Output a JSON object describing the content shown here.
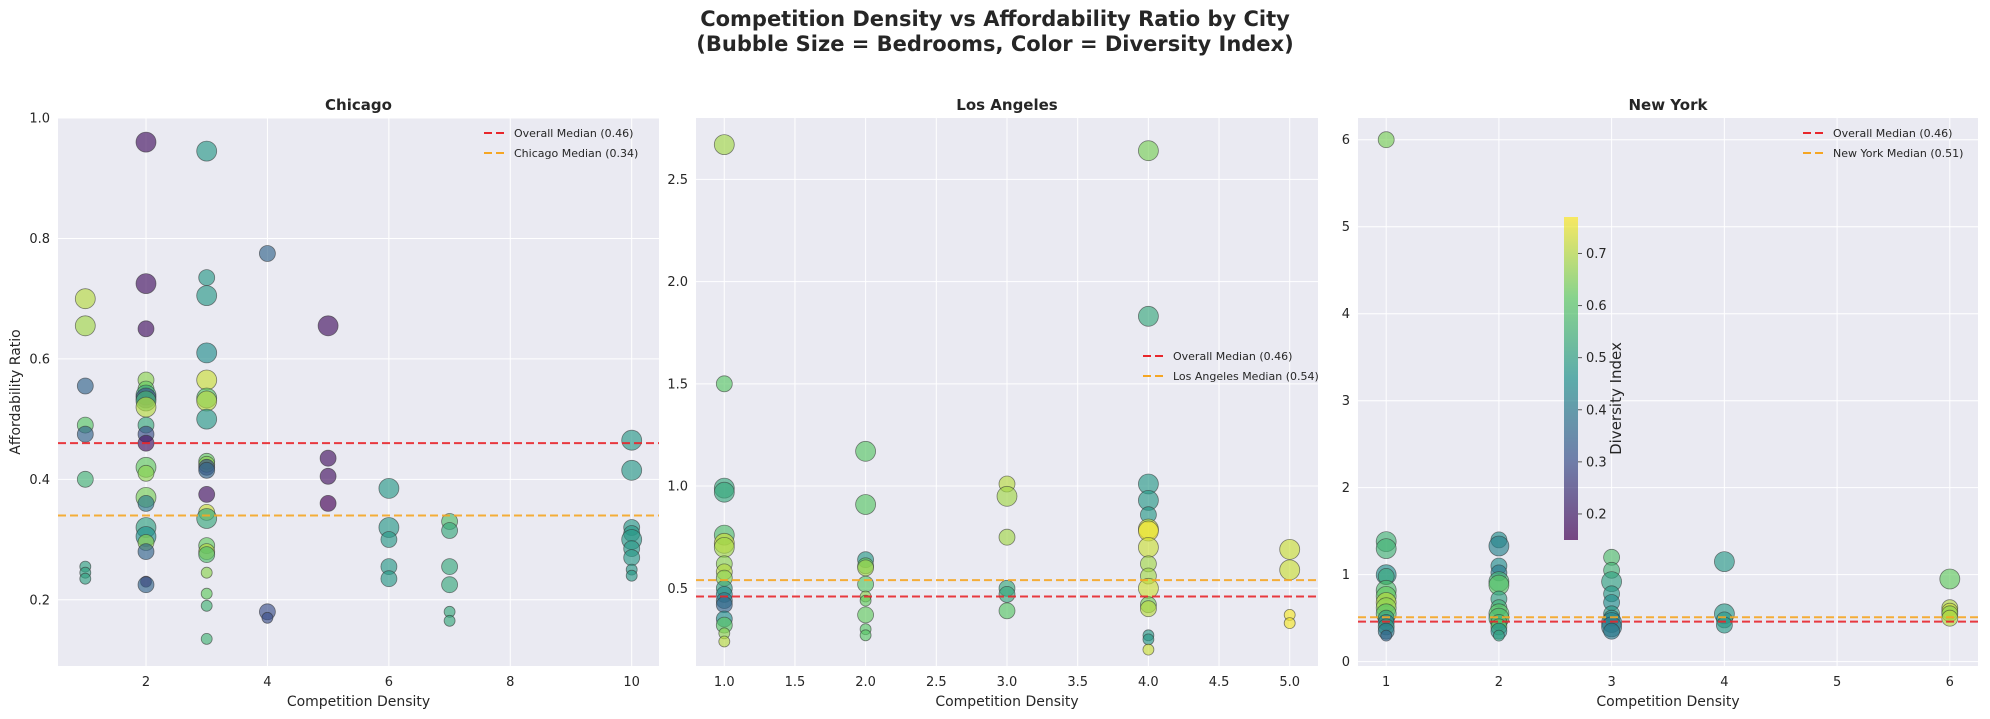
{
  "figure": {
    "title_line1": "Competition Density vs Affordability Ratio by City",
    "title_line2": "(Bubble Size = Bedrooms, Color = Diversity Index)",
    "colorbar_label": "Diversity Index",
    "colorbar_ticks": [
      "0.2",
      "0.3",
      "0.4",
      "0.5",
      "0.6",
      "0.7"
    ],
    "colormap": "viridis",
    "colors": {
      "panel_bg": "#EAEAF2",
      "overall_median": "#E8262B",
      "city_median": "#F5A623",
      "grid": "#FFFFFF"
    }
  },
  "chart_data": [
    {
      "type": "scatter",
      "title": "Chicago",
      "xlabel": "Competition Density",
      "ylabel": "Affordability Ratio",
      "xlim": [
        0.55,
        10.45
      ],
      "ylim": [
        0.09,
        1.0
      ],
      "xticks": [
        "2",
        "4",
        "6",
        "8",
        "10"
      ],
      "yticks": [
        "0.2",
        "0.4",
        "0.6",
        "0.8",
        "1.0"
      ],
      "legend_position": "upper right",
      "overall_median": 0.46,
      "overall_median_label": "Overall Median (0.46)",
      "city_median": 0.34,
      "city_median_label": "Chicago Median (0.34)",
      "points": [
        [
          1,
          0.7,
          0.7,
          3
        ],
        [
          1,
          0.655,
          0.68,
          3
        ],
        [
          1,
          0.555,
          0.35,
          2
        ],
        [
          1,
          0.49,
          0.6,
          2
        ],
        [
          1,
          0.475,
          0.35,
          2
        ],
        [
          1,
          0.4,
          0.55,
          2
        ],
        [
          1,
          0.255,
          0.5,
          1
        ],
        [
          1,
          0.245,
          0.5,
          1
        ],
        [
          1,
          0.235,
          0.5,
          1
        ],
        [
          2,
          0.96,
          0.18,
          3
        ],
        [
          2,
          0.725,
          0.18,
          3
        ],
        [
          2,
          0.65,
          0.18,
          2
        ],
        [
          2,
          0.565,
          0.66,
          2
        ],
        [
          2,
          0.55,
          0.62,
          2
        ],
        [
          2,
          0.54,
          0.52,
          3
        ],
        [
          2,
          0.535,
          0.3,
          3
        ],
        [
          2,
          0.53,
          0.55,
          3
        ],
        [
          2,
          0.52,
          0.7,
          3
        ],
        [
          2,
          0.49,
          0.52,
          2
        ],
        [
          2,
          0.475,
          0.3,
          2
        ],
        [
          2,
          0.46,
          0.18,
          2
        ],
        [
          2,
          0.42,
          0.62,
          3
        ],
        [
          2,
          0.41,
          0.66,
          2
        ],
        [
          2,
          0.37,
          0.64,
          3
        ],
        [
          2,
          0.36,
          0.4,
          2
        ],
        [
          2,
          0.32,
          0.5,
          3
        ],
        [
          2,
          0.305,
          0.46,
          3
        ],
        [
          2,
          0.295,
          0.66,
          2
        ],
        [
          2,
          0.28,
          0.35,
          2
        ],
        [
          2,
          0.23,
          0.18,
          1
        ],
        [
          2,
          0.225,
          0.35,
          2
        ],
        [
          3,
          0.945,
          0.48,
          3
        ],
        [
          3,
          0.735,
          0.48,
          2
        ],
        [
          3,
          0.705,
          0.48,
          3
        ],
        [
          3,
          0.61,
          0.45,
          3
        ],
        [
          3,
          0.565,
          0.72,
          3
        ],
        [
          3,
          0.535,
          0.6,
          3
        ],
        [
          3,
          0.53,
          0.7,
          3
        ],
        [
          3,
          0.5,
          0.48,
          3
        ],
        [
          3,
          0.43,
          0.62,
          2
        ],
        [
          3,
          0.425,
          0.66,
          2
        ],
        [
          3,
          0.42,
          0.28,
          2
        ],
        [
          3,
          0.415,
          0.35,
          2
        ],
        [
          3,
          0.375,
          0.18,
          2
        ],
        [
          3,
          0.345,
          0.72,
          2
        ],
        [
          3,
          0.335,
          0.52,
          3
        ],
        [
          3,
          0.29,
          0.62,
          2
        ],
        [
          3,
          0.28,
          0.7,
          2
        ],
        [
          3,
          0.275,
          0.58,
          2
        ],
        [
          3,
          0.245,
          0.66,
          1
        ],
        [
          3,
          0.21,
          0.62,
          1
        ],
        [
          3,
          0.19,
          0.55,
          1
        ],
        [
          3,
          0.135,
          0.55,
          1
        ],
        [
          4,
          0.775,
          0.35,
          2
        ],
        [
          4,
          0.18,
          0.3,
          2
        ],
        [
          4,
          0.17,
          0.3,
          1
        ],
        [
          5,
          0.655,
          0.18,
          3
        ],
        [
          5,
          0.435,
          0.18,
          2
        ],
        [
          5,
          0.405,
          0.18,
          2
        ],
        [
          5,
          0.36,
          0.15,
          2
        ],
        [
          6,
          0.385,
          0.48,
          3
        ],
        [
          6,
          0.32,
          0.48,
          3
        ],
        [
          6,
          0.3,
          0.48,
          2
        ],
        [
          6,
          0.255,
          0.48,
          2
        ],
        [
          6,
          0.235,
          0.48,
          2
        ],
        [
          7,
          0.33,
          0.58,
          2
        ],
        [
          7,
          0.315,
          0.52,
          2
        ],
        [
          7,
          0.255,
          0.52,
          2
        ],
        [
          7,
          0.225,
          0.52,
          2
        ],
        [
          7,
          0.18,
          0.52,
          1
        ],
        [
          7,
          0.165,
          0.52,
          1
        ],
        [
          10,
          0.465,
          0.48,
          3
        ],
        [
          10,
          0.415,
          0.48,
          3
        ],
        [
          10,
          0.32,
          0.48,
          2
        ],
        [
          10,
          0.31,
          0.48,
          2
        ],
        [
          10,
          0.3,
          0.48,
          3
        ],
        [
          10,
          0.285,
          0.48,
          2
        ],
        [
          10,
          0.27,
          0.48,
          2
        ],
        [
          10,
          0.25,
          0.48,
          1
        ],
        [
          10,
          0.24,
          0.48,
          1
        ]
      ]
    },
    {
      "type": "scatter",
      "title": "Los Angeles",
      "xlabel": "Competition Density",
      "ylabel": "",
      "xlim": [
        0.8,
        5.2
      ],
      "ylim": [
        0.12,
        2.8
      ],
      "xticks": [
        "1.0",
        "1.5",
        "2.0",
        "2.5",
        "3.0",
        "3.5",
        "4.0",
        "4.5",
        "5.0"
      ],
      "yticks": [
        "0.5",
        "1.0",
        "1.5",
        "2.0",
        "2.5"
      ],
      "legend_position": "center right",
      "overall_median": 0.46,
      "overall_median_label": "Overall Median (0.46)",
      "city_median": 0.54,
      "city_median_label": "Los Angeles Median (0.54)",
      "points": [
        [
          1,
          2.67,
          0.68,
          3
        ],
        [
          1,
          1.5,
          0.6,
          2
        ],
        [
          1,
          0.99,
          0.52,
          3
        ],
        [
          1,
          0.97,
          0.52,
          3
        ],
        [
          1,
          0.76,
          0.58,
          3
        ],
        [
          1,
          0.72,
          0.72,
          3
        ],
        [
          1,
          0.7,
          0.68,
          3
        ],
        [
          1,
          0.62,
          0.66,
          2
        ],
        [
          1,
          0.58,
          0.7,
          2
        ],
        [
          1,
          0.55,
          0.66,
          2
        ],
        [
          1,
          0.5,
          0.5,
          2
        ],
        [
          1,
          0.47,
          0.45,
          2
        ],
        [
          1,
          0.44,
          0.4,
          2
        ],
        [
          1,
          0.42,
          0.35,
          2
        ],
        [
          1,
          0.35,
          0.45,
          2
        ],
        [
          1,
          0.32,
          0.6,
          2
        ],
        [
          1,
          0.28,
          0.66,
          1
        ],
        [
          1,
          0.24,
          0.7,
          1
        ],
        [
          2,
          1.17,
          0.6,
          3
        ],
        [
          2,
          0.91,
          0.6,
          3
        ],
        [
          2,
          0.64,
          0.48,
          2
        ],
        [
          2,
          0.61,
          0.62,
          2
        ],
        [
          2,
          0.6,
          0.68,
          2
        ],
        [
          2,
          0.52,
          0.6,
          2
        ],
        [
          2,
          0.46,
          0.66,
          1
        ],
        [
          2,
          0.44,
          0.62,
          1
        ],
        [
          2,
          0.37,
          0.62,
          2
        ],
        [
          2,
          0.3,
          0.6,
          1
        ],
        [
          2,
          0.27,
          0.6,
          1
        ],
        [
          3,
          1.01,
          0.7,
          2
        ],
        [
          3,
          0.95,
          0.68,
          3
        ],
        [
          3,
          0.75,
          0.68,
          2
        ],
        [
          3,
          0.5,
          0.52,
          2
        ],
        [
          3,
          0.47,
          0.52,
          2
        ],
        [
          3,
          0.39,
          0.6,
          2
        ],
        [
          4,
          2.64,
          0.64,
          3
        ],
        [
          4,
          1.83,
          0.52,
          3
        ],
        [
          4,
          1.01,
          0.48,
          3
        ],
        [
          4,
          0.93,
          0.48,
          3
        ],
        [
          4,
          0.86,
          0.48,
          2
        ],
        [
          4,
          0.79,
          0.72,
          3
        ],
        [
          4,
          0.78,
          0.76,
          3
        ],
        [
          4,
          0.7,
          0.72,
          3
        ],
        [
          4,
          0.62,
          0.68,
          2
        ],
        [
          4,
          0.56,
          0.68,
          2
        ],
        [
          4,
          0.5,
          0.72,
          3
        ],
        [
          4,
          0.42,
          0.64,
          2
        ],
        [
          4,
          0.4,
          0.7,
          2
        ],
        [
          4,
          0.27,
          0.48,
          1
        ],
        [
          4,
          0.25,
          0.48,
          1
        ],
        [
          4,
          0.2,
          0.72,
          1
        ],
        [
          5,
          0.69,
          0.72,
          3
        ],
        [
          5,
          0.59,
          0.72,
          3
        ],
        [
          5,
          0.37,
          0.76,
          1
        ],
        [
          5,
          0.33,
          0.76,
          1
        ]
      ]
    },
    {
      "type": "scatter",
      "title": "New York",
      "xlabel": "Competition Density",
      "ylabel": "",
      "xlim": [
        0.75,
        6.25
      ],
      "ylim": [
        -0.05,
        6.25
      ],
      "xticks": [
        "1",
        "2",
        "3",
        "4",
        "5",
        "6"
      ],
      "yticks": [
        "0",
        "1",
        "2",
        "3",
        "4",
        "5",
        "6"
      ],
      "legend_position": "upper right",
      "overall_median": 0.46,
      "overall_median_label": "Overall Median (0.46)",
      "city_median": 0.51,
      "city_median_label": "New York Median (0.51)",
      "points": [
        [
          1,
          6.0,
          0.64,
          2
        ],
        [
          1,
          1.38,
          0.55,
          3
        ],
        [
          1,
          1.3,
          0.55,
          3
        ],
        [
          1,
          1.0,
          0.45,
          3
        ],
        [
          1,
          0.98,
          0.52,
          2
        ],
        [
          1,
          0.82,
          0.58,
          3
        ],
        [
          1,
          0.75,
          0.62,
          3
        ],
        [
          1,
          0.68,
          0.7,
          3
        ],
        [
          1,
          0.62,
          0.66,
          3
        ],
        [
          1,
          0.55,
          0.6,
          3
        ],
        [
          1,
          0.5,
          0.5,
          2
        ],
        [
          1,
          0.45,
          0.4,
          2
        ],
        [
          1,
          0.4,
          0.5,
          2
        ],
        [
          1,
          0.35,
          0.4,
          2
        ],
        [
          1,
          0.3,
          0.35,
          1
        ],
        [
          2,
          1.4,
          0.45,
          2
        ],
        [
          2,
          1.33,
          0.42,
          3
        ],
        [
          2,
          1.1,
          0.45,
          2
        ],
        [
          2,
          1.02,
          0.4,
          2
        ],
        [
          2,
          0.92,
          0.55,
          3
        ],
        [
          2,
          0.88,
          0.6,
          3
        ],
        [
          2,
          0.72,
          0.5,
          2
        ],
        [
          2,
          0.62,
          0.55,
          2
        ],
        [
          2,
          0.55,
          0.6,
          3
        ],
        [
          2,
          0.5,
          0.58,
          3
        ],
        [
          2,
          0.45,
          0.55,
          2
        ],
        [
          2,
          0.4,
          0.6,
          2
        ],
        [
          2,
          0.35,
          0.45,
          2
        ],
        [
          2,
          0.3,
          0.5,
          1
        ],
        [
          3,
          1.2,
          0.58,
          2
        ],
        [
          3,
          1.05,
          0.55,
          2
        ],
        [
          3,
          0.92,
          0.5,
          3
        ],
        [
          3,
          0.78,
          0.48,
          2
        ],
        [
          3,
          0.68,
          0.45,
          2
        ],
        [
          3,
          0.55,
          0.48,
          2
        ],
        [
          3,
          0.5,
          0.45,
          2
        ],
        [
          3,
          0.45,
          0.42,
          3
        ],
        [
          3,
          0.4,
          0.4,
          3
        ],
        [
          3,
          0.35,
          0.4,
          2
        ],
        [
          4,
          1.15,
          0.48,
          3
        ],
        [
          4,
          0.55,
          0.48,
          3
        ],
        [
          4,
          0.48,
          0.48,
          2
        ],
        [
          4,
          0.42,
          0.48,
          2
        ],
        [
          6,
          0.95,
          0.62,
          3
        ],
        [
          6,
          0.62,
          0.7,
          2
        ],
        [
          6,
          0.58,
          0.72,
          2
        ],
        [
          6,
          0.55,
          0.66,
          2
        ],
        [
          6,
          0.5,
          0.7,
          2
        ]
      ]
    }
  ]
}
